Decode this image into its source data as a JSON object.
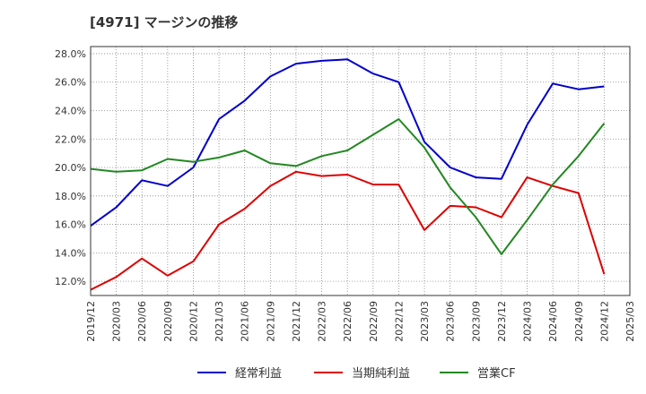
{
  "chart_data": {
    "type": "line",
    "title": "[4971]  マージンの推移",
    "x": [
      "2019/12",
      "2020/03",
      "2020/06",
      "2020/09",
      "2020/12",
      "2021/03",
      "2021/06",
      "2021/09",
      "2021/12",
      "2022/03",
      "2022/06",
      "2022/09",
      "2022/12",
      "2023/03",
      "2023/06",
      "2023/09",
      "2023/12",
      "2024/03",
      "2024/06",
      "2024/09",
      "2024/12",
      "2025/03"
    ],
    "ylim": [
      11.0,
      28.5
    ],
    "yticks": [
      12,
      14,
      16,
      18,
      20,
      22,
      24,
      26,
      28
    ],
    "ytick_labels": [
      "12.0%",
      "14.0%",
      "16.0%",
      "18.0%",
      "20.0%",
      "22.0%",
      "24.0%",
      "26.0%",
      "28.0%"
    ],
    "grid": true,
    "legend_position": "bottom",
    "series": [
      {
        "name": "経常利益",
        "color": "#0000cc",
        "values": [
          15.9,
          17.2,
          19.1,
          18.7,
          20.0,
          23.4,
          24.7,
          26.4,
          27.3,
          27.5,
          27.6,
          26.6,
          26.0,
          21.8,
          20.0,
          19.3,
          19.2,
          23.0,
          25.9,
          25.5,
          25.7,
          null
        ]
      },
      {
        "name": "当期純利益",
        "color": "#dd0000",
        "values": [
          11.4,
          12.3,
          13.6,
          12.4,
          13.4,
          16.0,
          17.1,
          18.7,
          19.7,
          19.4,
          19.5,
          18.8,
          18.8,
          15.6,
          17.3,
          17.2,
          16.5,
          19.3,
          18.7,
          18.2,
          12.5,
          null
        ]
      },
      {
        "name": "営業CF",
        "color": "#228822",
        "values": [
          19.9,
          19.7,
          19.8,
          20.6,
          20.4,
          20.7,
          21.2,
          20.3,
          20.1,
          20.8,
          21.2,
          22.3,
          23.4,
          21.4,
          18.6,
          16.5,
          13.9,
          16.3,
          18.8,
          20.8,
          23.1,
          null
        ]
      }
    ]
  }
}
